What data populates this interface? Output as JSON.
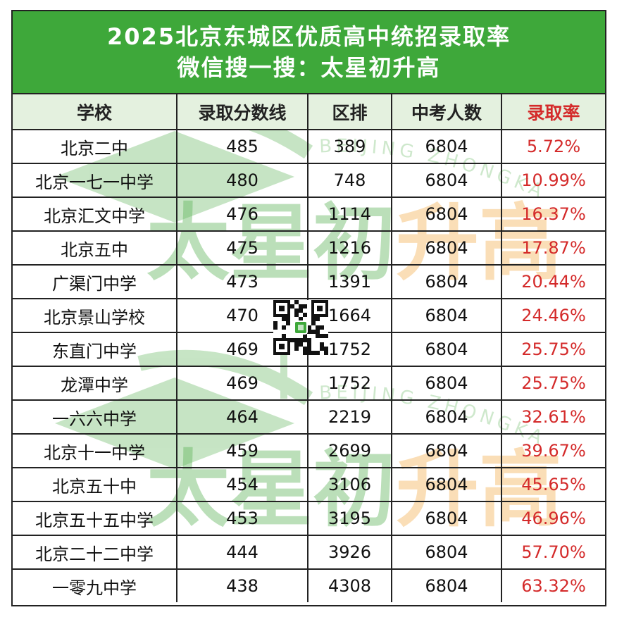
{
  "title": {
    "line1": "2025北京东城区优质高中统招录取率",
    "line2": "微信搜一搜：太星初升高"
  },
  "watermark": {
    "brand": "太星初升高",
    "brand_part1": "太星初",
    "brand_part2": "升高",
    "subtext": "BEIJING ZHONGKAO",
    "green": "#5fb55a",
    "orange": "#f5b356"
  },
  "colors": {
    "header_green": "#3ea83a",
    "header_row_bg": "#e4f1df",
    "rate_red": "#d42a2a"
  },
  "table": {
    "headers": [
      "学校",
      "录取分数线",
      "区排",
      "中考人数",
      "录取率"
    ],
    "rows": [
      [
        "北京二中",
        "485",
        "389",
        "6804",
        "5.72%"
      ],
      [
        "北京一七一中学",
        "480",
        "748",
        "6804",
        "10.99%"
      ],
      [
        "北京汇文中学",
        "476",
        "1114",
        "6804",
        "16.37%"
      ],
      [
        "北京五中",
        "475",
        "1216",
        "6804",
        "17.87%"
      ],
      [
        "广渠门中学",
        "473",
        "1391",
        "6804",
        "20.44%"
      ],
      [
        "北京景山学校",
        "470",
        "1664",
        "6804",
        "24.46%"
      ],
      [
        "东直门中学",
        "469",
        "1752",
        "6804",
        "25.75%"
      ],
      [
        "龙潭中学",
        "469",
        "1752",
        "6804",
        "25.75%"
      ],
      [
        "一六六中学",
        "464",
        "2219",
        "6804",
        "32.61%"
      ],
      [
        "北京十一中学",
        "459",
        "2699",
        "6804",
        "39.67%"
      ],
      [
        "北京五十中",
        "454",
        "3106",
        "6804",
        "45.65%"
      ],
      [
        "北京五十五中学",
        "453",
        "3195",
        "6804",
        "46.96%"
      ],
      [
        "北京二十二中学",
        "444",
        "3926",
        "6804",
        "57.70%"
      ],
      [
        "一零九中学",
        "438",
        "4308",
        "6804",
        "63.32%"
      ]
    ]
  }
}
